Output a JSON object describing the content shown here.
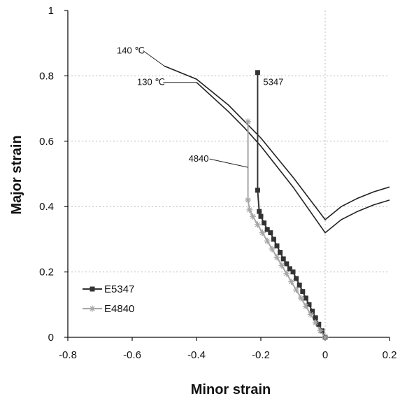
{
  "chart_data": {
    "type": "line",
    "title": "",
    "xlabel": "Minor strain",
    "ylabel": "Major strain",
    "xlim": [
      -0.8,
      0.2
    ],
    "ylim": [
      0,
      1
    ],
    "xticks": [
      "-0.8",
      "-0.6",
      "-0.4",
      "-0.2",
      "0",
      "0.2"
    ],
    "yticks": [
      "0",
      "0.2",
      "0.4",
      "0.6",
      "0.8",
      "1"
    ],
    "xtick_values": [
      -0.8,
      -0.6,
      -0.4,
      -0.2,
      0,
      0.2
    ],
    "ytick_values": [
      0,
      0.2,
      0.4,
      0.6,
      0.8,
      1
    ],
    "grid": true,
    "legend_position": "bottom-left",
    "series": [
      {
        "name": "E5347",
        "kind": "strain path",
        "color": "#333333",
        "marker": "square",
        "x": [
          0.0,
          -0.01,
          -0.02,
          -0.03,
          -0.04,
          -0.05,
          -0.06,
          -0.07,
          -0.08,
          -0.09,
          -0.1,
          -0.11,
          -0.12,
          -0.13,
          -0.14,
          -0.15,
          -0.16,
          -0.17,
          -0.18,
          -0.19,
          -0.2,
          -0.205,
          -0.21,
          -0.21
        ],
        "y": [
          0.0,
          0.02,
          0.04,
          0.06,
          0.08,
          0.1,
          0.12,
          0.14,
          0.16,
          0.18,
          0.2,
          0.21,
          0.225,
          0.24,
          0.26,
          0.28,
          0.3,
          0.32,
          0.33,
          0.35,
          0.37,
          0.385,
          0.45,
          0.81
        ]
      },
      {
        "name": "E4840",
        "kind": "strain path",
        "color": "#a6a6a6",
        "marker": "star",
        "x": [
          0.0,
          -0.015,
          -0.03,
          -0.045,
          -0.06,
          -0.075,
          -0.09,
          -0.105,
          -0.12,
          -0.135,
          -0.15,
          -0.165,
          -0.18,
          -0.195,
          -0.21,
          -0.225,
          -0.235,
          -0.24,
          -0.24
        ],
        "y": [
          0.0,
          0.02,
          0.045,
          0.07,
          0.095,
          0.12,
          0.145,
          0.17,
          0.195,
          0.22,
          0.245,
          0.27,
          0.295,
          0.32,
          0.345,
          0.37,
          0.39,
          0.42,
          0.66
        ]
      },
      {
        "name": "140 ℃",
        "kind": "FLC",
        "color": "#222222",
        "x": [
          -0.5,
          -0.4,
          -0.3,
          -0.25,
          -0.2,
          -0.1,
          0.0,
          0.05,
          0.1,
          0.15,
          0.2
        ],
        "y": [
          0.83,
          0.79,
          0.71,
          0.66,
          0.61,
          0.49,
          0.36,
          0.4,
          0.425,
          0.445,
          0.46
        ]
      },
      {
        "name": "130 ℃",
        "kind": "FLC",
        "color": "#222222",
        "x": [
          -0.4,
          -0.3,
          -0.25,
          -0.2,
          -0.1,
          0.0,
          0.05,
          0.1,
          0.15,
          0.2
        ],
        "y": [
          0.78,
          0.69,
          0.64,
          0.585,
          0.46,
          0.32,
          0.36,
          0.385,
          0.405,
          0.42
        ]
      }
    ],
    "annotations": [
      {
        "text": "140 ℃",
        "x": -0.5,
        "y": 0.83
      },
      {
        "text": "130 ℃",
        "x": -0.4,
        "y": 0.78
      },
      {
        "text": "5347",
        "x": -0.21,
        "y": 0.78
      },
      {
        "text": "4840",
        "x": -0.24,
        "y": 0.52
      }
    ]
  }
}
